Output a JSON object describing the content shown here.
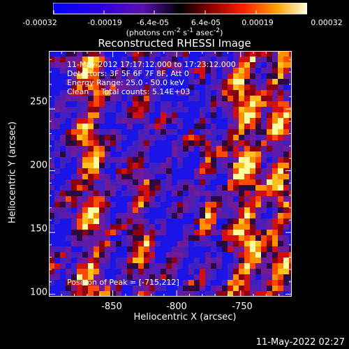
{
  "colorbar": {
    "ticks": [
      "-0.00032",
      "-0.00019",
      "-6.4e-05",
      "6.4e-05",
      "0.00019",
      "0.00032"
    ],
    "units_html": "(photons cm<sup>-2</sup> s<sup>-1</sup> asec<sup>-2</sup>)"
  },
  "chart_data": {
    "type": "heatmap",
    "title": "Reconstructed RHESSI Image",
    "xlabel": "Heliocentric X (arcsec)",
    "ylabel": "Heliocentric Y (arcsec)",
    "xlim": [
      -900,
      -710
    ],
    "ylim": [
      98,
      297
    ],
    "xticks": [
      -850,
      -800,
      -750
    ],
    "yticks": [
      100,
      150,
      200,
      250
    ],
    "colorbar_range": [
      -0.00032,
      0.00032
    ],
    "annotations": [
      "11-May-2012 17:17:12.000 to 17:23:12.000",
      "Detectors: 3F 5F 6F 7F 8F, Att 0",
      "Energy Range: 25.0 - 50.0 keV",
      "Clean     Total counts: 5.14E+03"
    ],
    "peak_label": "Position of Peak = [-715,212]"
  },
  "timestamp": "11-May-2022 02:27"
}
